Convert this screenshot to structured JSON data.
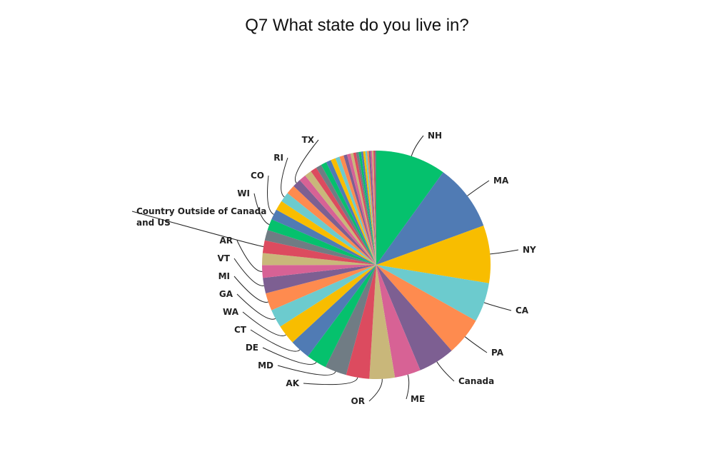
{
  "chart_data": {
    "type": "pie",
    "title": "Q7 What state do you live in?",
    "start": "top",
    "direction": "clockwise",
    "legend": "none",
    "slices": [
      {
        "label": "NH",
        "value": 10.0,
        "color": "#05c16d"
      },
      {
        "label": "MA",
        "value": 9.5,
        "color": "#507bb4"
      },
      {
        "label": "NY",
        "value": 8.2,
        "color": "#f8bd00"
      },
      {
        "label": "CA",
        "value": 5.6,
        "color": "#6ccbce"
      },
      {
        "label": "PA",
        "value": 5.4,
        "color": "#fe8b4f"
      },
      {
        "label": "Canada",
        "value": 5.2,
        "color": "#7d5f92"
      },
      {
        "label": "ME",
        "value": 3.7,
        "color": "#d76295"
      },
      {
        "label": "OR",
        "value": 3.6,
        "color": "#c9b77a"
      },
      {
        "label": "AK",
        "value": 3.3,
        "color": "#dc4b5f"
      },
      {
        "label": "MD",
        "value": 3.1,
        "color": "#707c84"
      },
      {
        "label": "DE",
        "value": 2.9,
        "color": "#05c16d"
      },
      {
        "label": "CT",
        "value": 2.9,
        "color": "#507bb4"
      },
      {
        "label": "WA",
        "value": 2.8,
        "color": "#f8bd00"
      },
      {
        "label": "GA",
        "value": 2.6,
        "color": "#6ccbce"
      },
      {
        "label": "MI",
        "value": 2.5,
        "color": "#fe8b4f"
      },
      {
        "label": "VT",
        "value": 2.2,
        "color": "#7d5f92"
      },
      {
        "label": "AR",
        "value": 1.8,
        "color": "#d76295"
      },
      {
        "label": "",
        "value": 1.7,
        "color": "#c9b77a"
      },
      {
        "label": "Country Outside of Canada and US",
        "value": 1.8,
        "color": "#dc4b5f"
      },
      {
        "label": "",
        "value": 1.5,
        "color": "#707c84"
      },
      {
        "label": "WI",
        "value": 1.6,
        "color": "#05c16d"
      },
      {
        "label": "CO",
        "value": 1.5,
        "color": "#507bb4"
      },
      {
        "label": "",
        "value": 1.4,
        "color": "#f8bd00"
      },
      {
        "label": "RI",
        "value": 1.4,
        "color": "#6ccbce"
      },
      {
        "label": "",
        "value": 1.3,
        "color": "#fe8b4f"
      },
      {
        "label": "TX",
        "value": 1.2,
        "color": "#7d5f92"
      },
      {
        "label": "",
        "value": 1.0,
        "color": "#d76295"
      },
      {
        "label": "",
        "value": 1.0,
        "color": "#c9b77a"
      },
      {
        "label": "",
        "value": 0.9,
        "color": "#dc4b5f"
      },
      {
        "label": "",
        "value": 0.8,
        "color": "#707c84"
      },
      {
        "label": "",
        "value": 0.8,
        "color": "#05c16d"
      },
      {
        "label": "",
        "value": 0.7,
        "color": "#507bb4"
      },
      {
        "label": "",
        "value": 0.7,
        "color": "#f8bd00"
      },
      {
        "label": "",
        "value": 0.6,
        "color": "#6ccbce"
      },
      {
        "label": "",
        "value": 0.6,
        "color": "#fe8b4f"
      },
      {
        "label": "",
        "value": 0.5,
        "color": "#7d5f92"
      },
      {
        "label": "",
        "value": 0.5,
        "color": "#d76295"
      },
      {
        "label": "",
        "value": 0.4,
        "color": "#c9b77a"
      },
      {
        "label": "",
        "value": 0.4,
        "color": "#dc4b5f"
      },
      {
        "label": "",
        "value": 0.35,
        "color": "#707c84"
      },
      {
        "label": "",
        "value": 0.35,
        "color": "#05c16d"
      },
      {
        "label": "",
        "value": 0.3,
        "color": "#507bb4"
      },
      {
        "label": "",
        "value": 0.3,
        "color": "#f8bd00"
      },
      {
        "label": "",
        "value": 0.25,
        "color": "#6ccbce"
      },
      {
        "label": "",
        "value": 0.25,
        "color": "#fe8b4f"
      },
      {
        "label": "",
        "value": 0.25,
        "color": "#7d5f92"
      },
      {
        "label": "",
        "value": 0.2,
        "color": "#d76295"
      },
      {
        "label": "",
        "value": 0.2,
        "color": "#c9b77a"
      },
      {
        "label": "",
        "value": 0.2,
        "color": "#dc4b5f"
      },
      {
        "label": "",
        "value": 0.2,
        "color": "#707c84"
      }
    ]
  }
}
